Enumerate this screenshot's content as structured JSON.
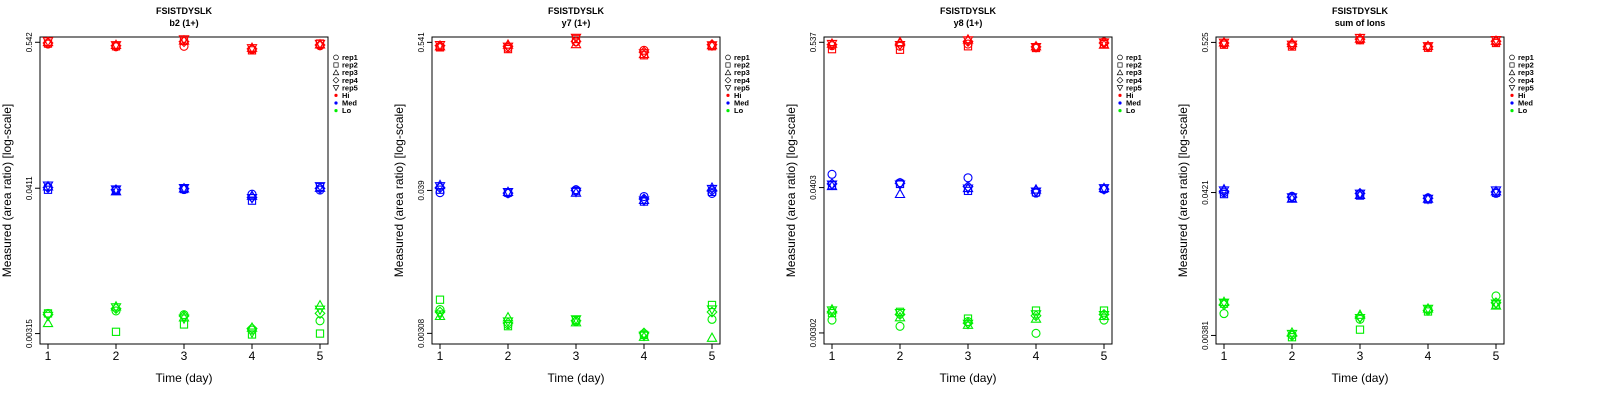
{
  "chart_data": [
    {
      "type": "scatter",
      "title": "FSISTDYSLK",
      "subtitle": "b2 (1+)",
      "xlabel": "Time (day)",
      "ylabel": "Measured (area ratio) [log-scale]",
      "x": [
        1,
        2,
        3,
        4,
        5
      ],
      "x_ticks": [
        "1",
        "2",
        "3",
        "4",
        "5"
      ],
      "y_ticks": [
        {
          "label": "0.542",
          "value": 0.542
        },
        {
          "label": "0.0411",
          "value": 0.0411
        },
        {
          "label": "0.00315",
          "value": 0.00315
        }
      ],
      "ylim": [
        0.00262,
        0.595
      ],
      "legend": [
        "rep1",
        "rep2",
        "rep3",
        "rep4",
        "rep5",
        "Hi",
        "Med",
        "Lo"
      ],
      "series": [
        {
          "name": "Hi",
          "color": "#ff0000",
          "reps": [
            [
              0.525,
              0.5,
              0.505,
              0.478,
              0.51
            ],
            [
              0.53,
              0.505,
              0.555,
              0.47,
              0.53
            ],
            [
              0.545,
              0.518,
              0.56,
              0.492,
              0.522
            ],
            [
              0.535,
              0.51,
              0.548,
              0.482,
              0.516
            ],
            [
              0.55,
              0.514,
              0.57,
              0.488,
              0.526
            ]
          ]
        },
        {
          "name": "Med",
          "color": "#0000ff",
          "reps": [
            [
              0.042,
              0.0398,
              0.0402,
              0.037,
              0.0398
            ],
            [
              0.04,
              0.0395,
              0.0405,
              0.033,
              0.042
            ],
            [
              0.0425,
              0.039,
              0.041,
              0.036,
              0.0415
            ],
            [
              0.0415,
              0.04,
              0.0408,
              0.035,
              0.041
            ],
            [
              0.043,
              0.0402,
              0.0412,
              0.0345,
              0.0425
            ]
          ]
        },
        {
          "name": "Lo",
          "color": "#00ee00",
          "reps": [
            [
              0.0045,
              0.0047,
              0.0044,
              0.00335,
              0.00395
            ],
            [
              0.0045,
              0.00325,
              0.0037,
              0.0031,
              0.00315
            ],
            [
              0.0038,
              0.0051,
              0.0042,
              0.0035,
              0.0052
            ],
            [
              0.0044,
              0.0049,
              0.0043,
              0.00345,
              0.0045
            ],
            [
              0.0043,
              0.005,
              0.0041,
              0.0032,
              0.0048
            ]
          ]
        }
      ]
    },
    {
      "type": "scatter",
      "title": "FSISTDYSLK",
      "subtitle": "y7 (1+)",
      "xlabel": "Time (day)",
      "ylabel": "Measured (area ratio) [log-scale]",
      "x": [
        1,
        2,
        3,
        4,
        5
      ],
      "x_ticks": [
        "1",
        "2",
        "3",
        "4",
        "5"
      ],
      "y_ticks": [
        {
          "label": "0.541",
          "value": 0.541
        },
        {
          "label": "0.039",
          "value": 0.039
        },
        {
          "label": "0.00308",
          "value": 0.00308
        }
      ],
      "ylim": [
        0.00255,
        0.595
      ],
      "legend": [
        "rep1",
        "rep2",
        "rep3",
        "rep4",
        "rep5",
        "Hi",
        "Med",
        "Lo"
      ],
      "series": [
        {
          "name": "Hi",
          "color": "#ff0000",
          "reps": [
            [
              0.5,
              0.49,
              0.545,
              0.47,
              0.51
            ],
            [
              0.495,
              0.48,
              0.575,
              0.43,
              0.505
            ],
            [
              0.505,
              0.52,
              0.525,
              0.44,
              0.515
            ],
            [
              0.51,
              0.505,
              0.55,
              0.455,
              0.52
            ],
            [
              0.515,
              0.5,
              0.585,
              0.445,
              0.512
            ]
          ]
        },
        {
          "name": "Med",
          "color": "#0000ff",
          "reps": [
            [
              0.0375,
              0.037,
              0.0395,
              0.035,
              0.037
            ],
            [
              0.0395,
              0.0375,
              0.0385,
              0.032,
              0.038
            ],
            [
              0.043,
              0.038,
              0.0375,
              0.033,
              0.041
            ],
            [
              0.041,
              0.0372,
              0.039,
              0.0335,
              0.039
            ],
            [
              0.042,
              0.0378,
              0.038,
              0.0325,
              0.04
            ]
          ]
        },
        {
          "name": "Lo",
          "color": "#00ee00",
          "reps": [
            [
              0.0047,
              0.0036,
              0.0038,
              0.00305,
              0.00395
            ],
            [
              0.0056,
              0.0035,
              0.0039,
              0.003,
              0.0051
            ],
            [
              0.0042,
              0.0041,
              0.00375,
              0.0029,
              0.00285
            ],
            [
              0.0045,
              0.0037,
              0.00385,
              0.0031,
              0.0045
            ],
            [
              0.0043,
              0.0038,
              0.00395,
              0.00295,
              0.0047
            ]
          ]
        }
      ]
    },
    {
      "type": "scatter",
      "title": "FSISTDYSLK",
      "subtitle": "y8 (1+)",
      "xlabel": "Time (day)",
      "ylabel": "Measured (area ratio) [log-scale]",
      "x": [
        1,
        2,
        3,
        4,
        5
      ],
      "x_ticks": [
        "1",
        "2",
        "3",
        "4",
        "5"
      ],
      "y_ticks": [
        {
          "label": "0.537",
          "value": 0.537
        },
        {
          "label": "0.0403",
          "value": 0.0403
        },
        {
          "label": "0.00302",
          "value": 0.00302
        }
      ],
      "ylim": [
        0.00248,
        0.59
      ],
      "legend": [
        "rep1",
        "rep2",
        "rep3",
        "rep4",
        "rep5",
        "Hi",
        "Med",
        "Lo"
      ],
      "series": [
        {
          "name": "Hi",
          "color": "#ff0000",
          "reps": [
            [
              0.505,
              0.5,
              0.52,
              0.49,
              0.54
            ],
            [
              0.475,
              0.47,
              0.5,
              0.485,
              0.52
            ],
            [
              0.525,
              0.54,
              0.565,
              0.5,
              0.515
            ],
            [
              0.515,
              0.52,
              0.545,
              0.495,
              0.53
            ],
            [
              0.52,
              0.51,
              0.555,
              0.492,
              0.535
            ]
          ]
        },
        {
          "name": "Med",
          "color": "#0000ff",
          "reps": [
            [
              0.051,
              0.044,
              0.048,
              0.0365,
              0.039
            ],
            [
              0.042,
              0.043,
              0.038,
              0.037,
              0.0395
            ],
            [
              0.0415,
              0.036,
              0.04,
              0.039,
              0.04
            ],
            [
              0.043,
              0.0435,
              0.041,
              0.038,
              0.0392
            ],
            [
              0.0425,
              0.0425,
              0.0395,
              0.0375,
              0.0398
            ]
          ]
        },
        {
          "name": "Lo",
          "color": "#00ee00",
          "reps": [
            [
              0.0038,
              0.0034,
              0.0037,
              0.003,
              0.0038
            ],
            [
              0.0043,
              0.0044,
              0.0039,
              0.0045,
              0.0045
            ],
            [
              0.0046,
              0.004,
              0.0035,
              0.0039,
              0.0041
            ],
            [
              0.0044,
              0.0042,
              0.0036,
              0.0041,
              0.0042
            ],
            [
              0.0045,
              0.0043,
              0.00355,
              0.0042,
              0.00415
            ]
          ]
        }
      ]
    },
    {
      "type": "scatter",
      "title": "FSISTDYSLK",
      "subtitle": "sum of Ions",
      "xlabel": "Time (day)",
      "ylabel": "Measured (area ratio) [log-scale]",
      "x": [
        1,
        2,
        3,
        4,
        5
      ],
      "x_ticks": [
        "1",
        "2",
        "3",
        "4",
        "5"
      ],
      "y_ticks": [
        {
          "label": "0.525",
          "value": 0.525
        },
        {
          "label": "0.0421",
          "value": 0.0421
        },
        {
          "label": "0.00381",
          "value": 0.00381
        }
      ],
      "ylim": [
        0.0033,
        0.575
      ],
      "legend": [
        "rep1",
        "rep2",
        "rep3",
        "rep4",
        "rep5",
        "Hi",
        "Med",
        "Lo"
      ],
      "series": [
        {
          "name": "Hi",
          "color": "#ff0000",
          "reps": [
            [
              0.515,
              0.5,
              0.55,
              0.49,
              0.53
            ],
            [
              0.505,
              0.49,
              0.545,
              0.48,
              0.52
            ],
            [
              0.525,
              0.52,
              0.56,
              0.495,
              0.54
            ],
            [
              0.52,
              0.51,
              0.555,
              0.488,
              0.535
            ],
            [
              0.522,
              0.505,
              0.565,
              0.492,
              0.545
            ]
          ]
        },
        {
          "name": "Med",
          "color": "#0000ff",
          "reps": [
            [
              0.042,
              0.0395,
              0.041,
              0.0385,
              0.0415
            ],
            [
              0.041,
              0.0385,
              0.04,
              0.0375,
              0.042
            ],
            [
              0.0445,
              0.038,
              0.0405,
              0.038,
              0.043
            ],
            [
              0.043,
              0.039,
              0.0415,
              0.0382,
              0.0425
            ],
            [
              0.0435,
              0.0388,
              0.0412,
              0.0378,
              0.0435
            ]
          ]
        },
        {
          "name": "Lo",
          "color": "#00ee00",
          "reps": [
            [
              0.0055,
              0.00385,
              0.005,
              0.0059,
              0.0074
            ],
            [
              0.0065,
              0.0037,
              0.0042,
              0.0057,
              0.0064
            ],
            [
              0.0067,
              0.004,
              0.0054,
              0.006,
              0.0063
            ],
            [
              0.0064,
              0.0038,
              0.0052,
              0.0058,
              0.0066
            ],
            [
              0.0066,
              0.0039,
              0.0051,
              0.00595,
              0.0065
            ]
          ]
        }
      ]
    }
  ]
}
